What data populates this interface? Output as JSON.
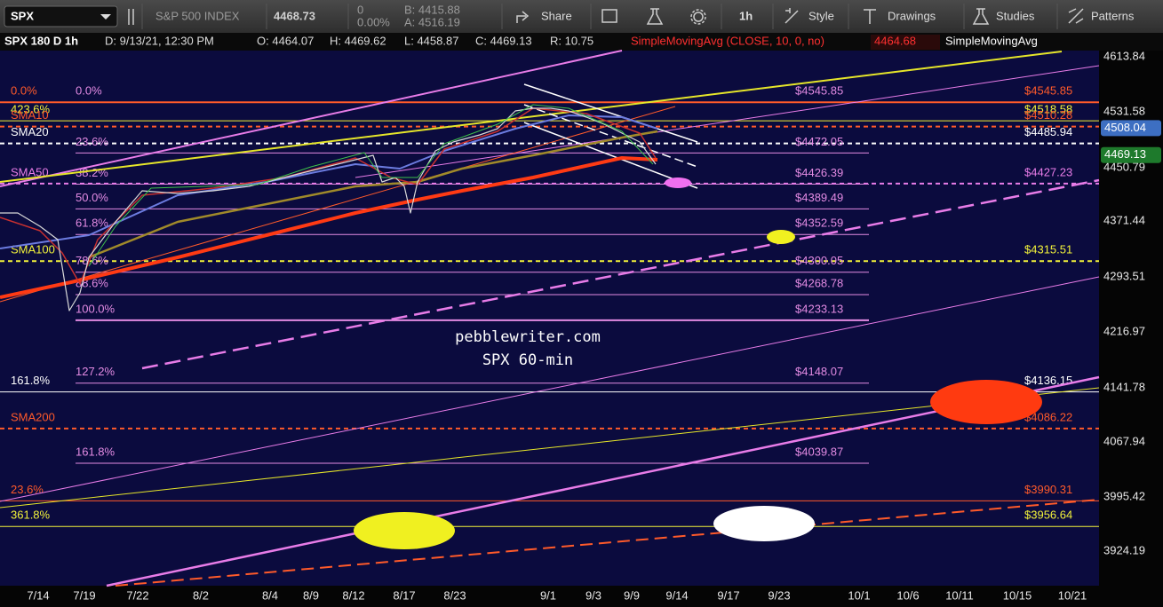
{
  "toolbar": {
    "symbol": "SPX",
    "name": "S&P 500 INDEX",
    "last": "4468.73",
    "change": "0",
    "change_pct": "0.00%",
    "bid": "B: 4415.88",
    "ask": "A: 4516.19",
    "share": "Share",
    "timeframe": "1h",
    "style": "Style",
    "drawings": "Drawings",
    "studies": "Studies",
    "patterns": "Patterns"
  },
  "info": {
    "symbol": "SPX 180 D 1h",
    "date": "D: 9/13/21, 12:30 PM",
    "open": "O: 4464.07",
    "high": "H: 4469.62",
    "low": "L: 4458.87",
    "close": "C: 4469.13",
    "range": "R: 10.75",
    "study1": "SimpleMovingAvg (CLOSE, 10, 0, no)",
    "study1_value": "4464.68",
    "study2": "SimpleMovingAvg"
  },
  "price_axis": [
    "4613.84",
    "4531.58",
    "4450.79",
    "4371.44",
    "4293.51",
    "4216.97",
    "4141.78",
    "4067.94",
    "3995.42",
    "3924.19"
  ],
  "price_badges": [
    {
      "text": "4508.04",
      "color": "#3d6fc2"
    },
    {
      "text": "4469.13",
      "color": "#1e7a2c"
    }
  ],
  "date_axis": [
    "7/14",
    "7/19",
    "7/22",
    "8/2",
    "8/4",
    "8/9",
    "8/12",
    "8/17",
    "8/23",
    "9/1",
    "9/3",
    "9/9",
    "9/14",
    "9/17",
    "9/23",
    "10/1",
    "10/6",
    "10/11",
    "10/15",
    "10/21"
  ],
  "watermark": [
    "pebblewriter.com",
    "SPX 60-min"
  ],
  "levels": [
    {
      "left": "0.0%",
      "left_color": "#ff5a2a",
      "mid": "0.0%",
      "mid_price": "$4545.85",
      "right": "$4545.85",
      "color": "#ff5a2a"
    },
    {
      "left": "423.6%",
      "left_color": "#f2f23a",
      "right": "$4518.58",
      "color": "#f2f23a"
    },
    {
      "left": "SMA10",
      "left_color": "#ff5a2a",
      "right": "$4510.28",
      "color": "#ff5a2a",
      "dashed": true
    },
    {
      "left": "SMA20",
      "left_color": "#ffffff",
      "right": "$4485.94",
      "color": "#ffffff",
      "dashed": true
    },
    {
      "mid": "23.6%",
      "mid_price": "$4472.05",
      "color": "#e38be3"
    },
    {
      "mid": "38.2%",
      "mid_price": "$4426.39",
      "color": "#e38be3"
    },
    {
      "left": "SMA50",
      "left_color": "#e87ce8",
      "right": "$4427.23",
      "color": "#e87ce8",
      "dashed": true
    },
    {
      "mid": "50.0%",
      "mid_price": "$4389.49",
      "color": "#e38be3"
    },
    {
      "mid": "61.8%",
      "mid_price": "$4352.59",
      "color": "#e38be3"
    },
    {
      "left": "SMA100",
      "left_color": "#f2f23a",
      "right": "$4315.51",
      "color": "#f2f23a",
      "dashed": true
    },
    {
      "mid": "78.6%",
      "mid_price": "$4300.05",
      "color": "#e38be3"
    },
    {
      "mid": "88.6%",
      "mid_price": "$4268.78",
      "color": "#e38be3"
    },
    {
      "mid": "100.0%",
      "mid_price": "$4233.13",
      "color": "#e38be3"
    },
    {
      "mid": "127.2%",
      "mid_price": "$4148.07",
      "color": "#e38be3"
    },
    {
      "left": "161.8%",
      "left_color": "#ffffff",
      "right": "$4136.15",
      "color": "#ffffff"
    },
    {
      "left": "SMA200",
      "left_color": "#ff5a2a",
      "right": "$4086.22",
      "color": "#ff5a2a",
      "dashed": true
    },
    {
      "mid": "161.8%",
      "mid_price": "$4039.87",
      "color": "#e38be3"
    },
    {
      "left": "23.6%",
      "left_color": "#ff5a2a",
      "right": "$3990.31",
      "color": "#ff5a2a"
    },
    {
      "left": "361.8%",
      "left_color": "#f2f23a",
      "right": "$3956.64",
      "color": "#f2f23a"
    }
  ]
}
